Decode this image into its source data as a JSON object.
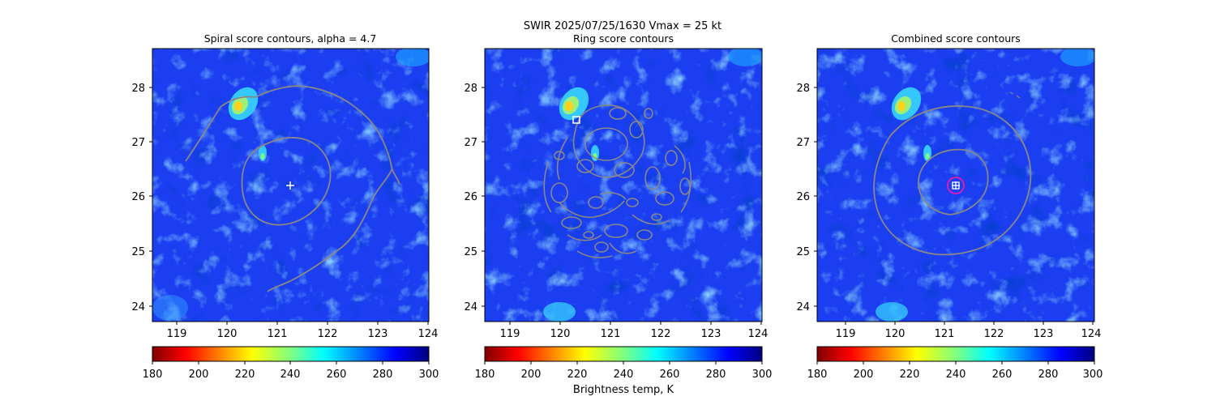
{
  "suptitle": {
    "line1": "SWIR  2025/07/25/1630    Vmax = 25 kt"
  },
  "colors": {
    "contour": "#888888",
    "marker_white": "#ffffff",
    "marker_magenta": "#d61fb4",
    "background_field": "#1a3ef0"
  },
  "colorbar_label": "Brightness temp, K",
  "chart_data": [
    {
      "type": "heatmap",
      "title": "Spiral score contours, alpha =  4.7",
      "xlabel": "",
      "ylabel": "",
      "xlim": [
        118.5,
        124.0
      ],
      "ylim": [
        23.7,
        28.7
      ],
      "xticks": [
        119,
        120,
        121,
        122,
        123,
        124
      ],
      "yticks": [
        24,
        25,
        26,
        27,
        28
      ],
      "colormap": "jet_r",
      "clim": [
        180,
        300
      ],
      "colorbar_ticks": [
        180,
        200,
        220,
        240,
        260,
        280,
        300
      ],
      "marker": {
        "shape": "plus",
        "x": 121.25,
        "y": 26.2,
        "color": "#ffffff"
      }
    },
    {
      "type": "heatmap",
      "title": "Ring score contours",
      "xlabel": "",
      "ylabel": "",
      "xlim": [
        118.5,
        124.0
      ],
      "ylim": [
        23.7,
        28.7
      ],
      "xticks": [
        119,
        120,
        121,
        122,
        123,
        124
      ],
      "yticks": [
        24,
        25,
        26,
        27,
        28
      ],
      "colormap": "jet_r",
      "clim": [
        180,
        300
      ],
      "colorbar_ticks": [
        180,
        200,
        220,
        240,
        260,
        280,
        300
      ],
      "colorbar_label": "Brightness temp, K",
      "marker": {
        "shape": "square",
        "x": 120.3,
        "y": 27.4,
        "color": "#ffffff"
      }
    },
    {
      "type": "heatmap",
      "title": "Combined score contours",
      "xlabel": "",
      "ylabel": "",
      "xlim": [
        118.5,
        124.0
      ],
      "ylim": [
        23.7,
        28.7
      ],
      "xticks": [
        119,
        120,
        121,
        122,
        123,
        124
      ],
      "yticks": [
        24,
        25,
        26,
        27,
        28
      ],
      "colormap": "jet_r",
      "clim": [
        180,
        300
      ],
      "colorbar_ticks": [
        180,
        200,
        220,
        240,
        260,
        280,
        300
      ],
      "marker": {
        "shape": "square-plus-circle",
        "x": 121.25,
        "y": 26.2,
        "color": "#ffffff",
        "ring_color": "#d61fb4"
      }
    }
  ]
}
